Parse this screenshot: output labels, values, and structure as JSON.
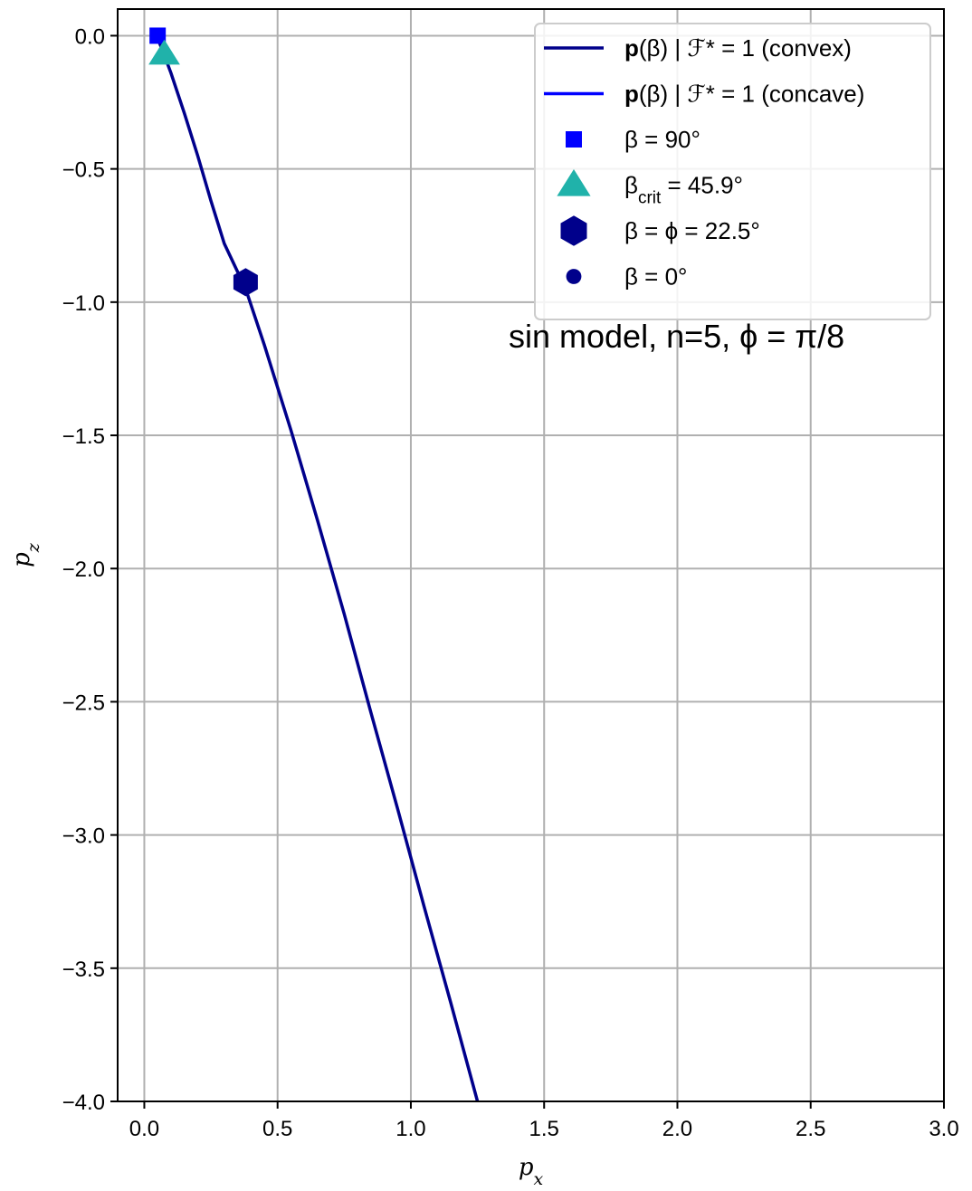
{
  "chart_data": {
    "type": "line",
    "xlabel": "p_x",
    "ylabel": "p_z",
    "xlim": [
      -0.1,
      3.0
    ],
    "ylim": [
      -4.0,
      0.1
    ],
    "grid": true,
    "legend_position": "top-right",
    "x_ticks": [
      "0.0",
      "0.5",
      "1.0",
      "1.5",
      "2.0",
      "2.5",
      "3.0"
    ],
    "y_ticks": [
      "0.0",
      "−0.5",
      "−1.0",
      "−1.5",
      "−2.0",
      "−2.5",
      "−3.0",
      "−3.5",
      "−4.0"
    ],
    "x_tick_values": [
      0.0,
      0.5,
      1.0,
      1.5,
      2.0,
      2.5,
      3.0
    ],
    "y_tick_values": [
      0.0,
      -0.5,
      -1.0,
      -1.5,
      -2.0,
      -2.5,
      -3.0,
      -3.5,
      -4.0
    ],
    "series": [
      {
        "name": "p(β) | ℱ* = 1 (convex)",
        "color": "#00008b",
        "x": [
          0.05,
          0.07,
          0.1,
          0.15,
          0.2,
          0.25,
          0.3,
          0.38,
          0.45,
          0.55,
          0.65,
          0.75,
          0.85,
          0.95,
          1.05,
          1.15,
          1.25
        ],
        "y": [
          -0.01,
          -0.06,
          -0.14,
          -0.29,
          -0.45,
          -0.62,
          -0.78,
          -0.95,
          -1.16,
          -1.48,
          -1.82,
          -2.17,
          -2.54,
          -2.9,
          -3.27,
          -3.63,
          -4.0
        ]
      },
      {
        "name": "p(β) | ℱ* = 1 (concave)",
        "color": "#0000ff",
        "x": [],
        "y": []
      }
    ],
    "markers": [
      {
        "name": "β = 90°",
        "shape": "square",
        "color": "#0000ff",
        "x": 0.05,
        "y": 0.0
      },
      {
        "name": "β_crit = 45.9°",
        "shape": "triangle",
        "color": "#20b2aa",
        "x": 0.075,
        "y": -0.07
      },
      {
        "name": "β = ϕ = 22.5°",
        "shape": "hexagon",
        "color": "#00008b",
        "x": 0.38,
        "y": -0.925
      },
      {
        "name": "β = 0°",
        "shape": "circle",
        "color": "#00008b",
        "x": null,
        "y": null
      }
    ],
    "annotation": "sin model, n=5, ϕ = π/8"
  }
}
